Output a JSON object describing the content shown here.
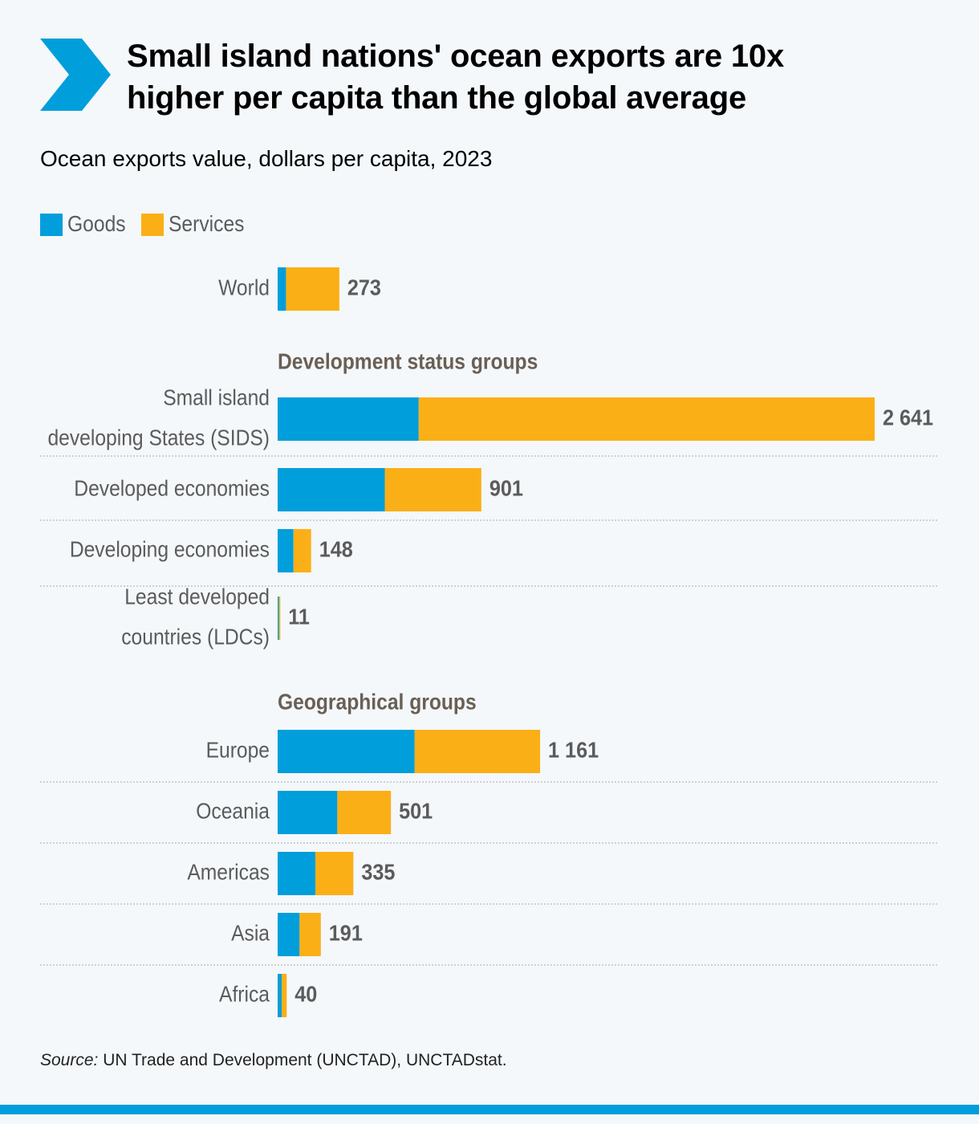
{
  "header": {
    "title_line1": "Small island nations' ocean exports are 10x",
    "title_line2": "higher per capita than the global average",
    "subtitle": "Ocean exports value, dollars per capita, 2023"
  },
  "icons": {
    "logo": "chevron-right-icon"
  },
  "colors": {
    "goods": "#009edb",
    "services": "#fbaf17",
    "chevron": "#009edb",
    "bottom_bar": "#009edb",
    "category_text": "#5b5b5b",
    "value_text": "#5b5b5b",
    "group_heading": "#6a5f55",
    "divider": "#b9b9b9"
  },
  "legend": [
    {
      "label": "Goods",
      "color": "#009edb"
    },
    {
      "label": "Services",
      "color": "#fbaf17"
    }
  ],
  "chart_data": {
    "type": "bar",
    "orientation": "horizontal",
    "stacked": true,
    "title": "",
    "xlabel": "",
    "ylabel": "",
    "xlim": [
      0,
      2641
    ],
    "grid": false,
    "legend_position": "top-left",
    "series": [
      {
        "name": "Goods",
        "color": "#009edb"
      },
      {
        "name": "Services",
        "color": "#fbaf17"
      }
    ],
    "groups": [
      {
        "heading": "",
        "rows": [
          {
            "label": [
              "World"
            ],
            "goods": 37,
            "services": 236,
            "total": 273,
            "total_label": "273"
          }
        ]
      },
      {
        "heading": "Development status groups",
        "rows": [
          {
            "label": [
              "Small island",
              "developing States (SIDS)"
            ],
            "goods": 624,
            "services": 2017,
            "total": 2641,
            "total_label": "2 641"
          },
          {
            "label": [
              "Developed economies"
            ],
            "goods": 474,
            "services": 427,
            "total": 901,
            "total_label": "901"
          },
          {
            "label": [
              "Developing economies"
            ],
            "goods": 70,
            "services": 78,
            "total": 148,
            "total_label": "148"
          },
          {
            "label": [
              "Least developed",
              "countries (LDCs)"
            ],
            "goods": 5,
            "services": 6,
            "total": 11,
            "total_label": "11"
          }
        ]
      },
      {
        "heading": "Geographical groups",
        "rows": [
          {
            "label": [
              "Europe"
            ],
            "goods": 606,
            "services": 555,
            "total": 1161,
            "total_label": "1 161"
          },
          {
            "label": [
              "Oceania"
            ],
            "goods": 264,
            "services": 237,
            "total": 501,
            "total_label": "501"
          },
          {
            "label": [
              "Americas"
            ],
            "goods": 167,
            "services": 168,
            "total": 335,
            "total_label": "335"
          },
          {
            "label": [
              "Asia"
            ],
            "goods": 97,
            "services": 94,
            "total": 191,
            "total_label": "191"
          },
          {
            "label": [
              "Africa"
            ],
            "goods": 18,
            "services": 22,
            "total": 40,
            "total_label": "40"
          }
        ]
      }
    ]
  },
  "footer": {
    "source_label": "Source:",
    "source_text": " UN Trade and Development (UNCTAD), UNCTADstat."
  }
}
